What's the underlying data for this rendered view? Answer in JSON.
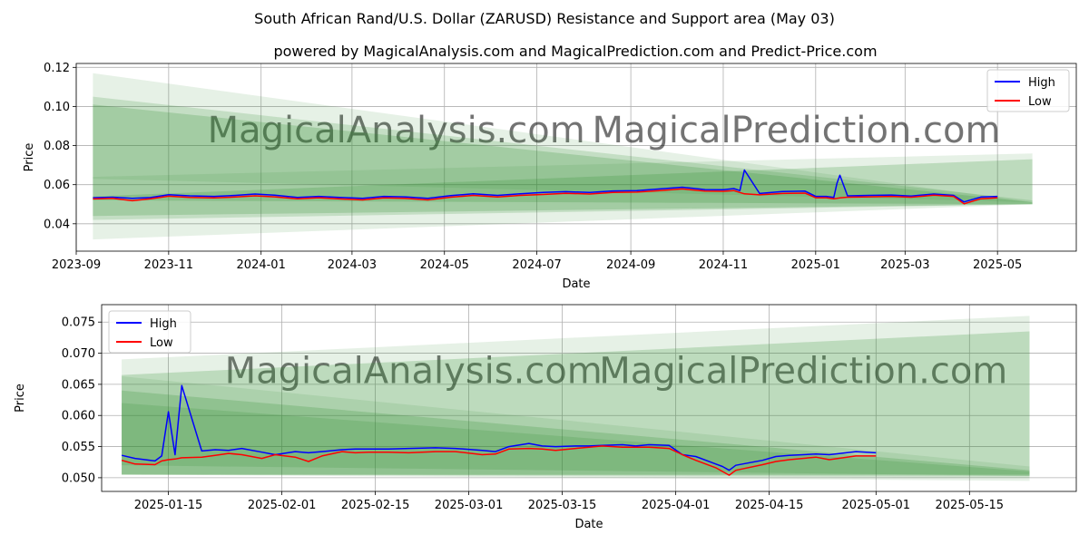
{
  "figure": {
    "title": "South African Rand/U.S. Dollar (ZARUSD) Resistance and Support area (May 03)",
    "subtitle": "powered by MagicalAnalysis.com and MagicalPrediction.com and Predict-Price.com",
    "watermark_left": "MagicalAnalysis.com",
    "watermark_right": "MagicalPrediction.com"
  },
  "colors": {
    "high": "#0000ff",
    "low": "#ff0000",
    "band": "#2e8b2e",
    "grid": "#b0b0b0"
  },
  "chart_data": [
    {
      "type": "line",
      "xlabel": "Date",
      "ylabel": "Price",
      "xlim": [
        "2023-09-01",
        "2025-06-22"
      ],
      "ylim": [
        0.026,
        0.122
      ],
      "xticks": [
        {
          "date": "2023-09-01",
          "label": "2023-09"
        },
        {
          "date": "2023-11-01",
          "label": "2023-11"
        },
        {
          "date": "2024-01-01",
          "label": "2024-01"
        },
        {
          "date": "2024-03-01",
          "label": "2024-03"
        },
        {
          "date": "2024-05-01",
          "label": "2024-05"
        },
        {
          "date": "2024-07-01",
          "label": "2024-07"
        },
        {
          "date": "2024-09-01",
          "label": "2024-09"
        },
        {
          "date": "2024-11-01",
          "label": "2024-11"
        },
        {
          "date": "2025-01-01",
          "label": "2025-01"
        },
        {
          "date": "2025-03-01",
          "label": "2025-03"
        },
        {
          "date": "2025-05-01",
          "label": "2025-05"
        }
      ],
      "yticks": [
        {
          "value": 0.04,
          "label": "0.04"
        },
        {
          "value": 0.06,
          "label": "0.06"
        },
        {
          "value": 0.08,
          "label": "0.08"
        },
        {
          "value": 0.1,
          "label": "0.10"
        },
        {
          "value": 0.12,
          "label": "0.12"
        }
      ],
      "grid": true,
      "legend": {
        "placement": "top-right",
        "entries": [
          "High",
          "Low"
        ]
      },
      "bands": [
        {
          "x0": "2023-09-12",
          "x1": "2025-05-24",
          "y0_top": 0.117,
          "y1_top": 0.051,
          "y0_bot": 0.032,
          "y1_bot": 0.05,
          "alpha": 0.12
        },
        {
          "x0": "2023-09-12",
          "x1": "2025-05-24",
          "y0_top": 0.105,
          "y1_top": 0.052,
          "y0_bot": 0.042,
          "y1_bot": 0.05,
          "alpha": 0.18
        },
        {
          "x0": "2023-09-12",
          "x1": "2025-05-24",
          "y0_top": 0.101,
          "y1_top": 0.051,
          "y0_bot": 0.052,
          "y1_bot": 0.05,
          "alpha": 0.22
        },
        {
          "x0": "2023-09-12",
          "x1": "2025-05-24",
          "y0_top": 0.064,
          "y1_top": 0.076,
          "y0_bot": 0.063,
          "y1_bot": 0.051,
          "alpha": 0.12
        },
        {
          "x0": "2023-09-12",
          "x1": "2025-05-24",
          "y0_top": 0.054,
          "y1_top": 0.073,
          "y0_bot": 0.044,
          "y1_bot": 0.05,
          "alpha": 0.22
        }
      ],
      "series": [
        {
          "name": "High",
          "x": [
            "2023-09-12",
            "2023-09-25",
            "2023-10-08",
            "2023-10-20",
            "2023-11-01",
            "2023-11-15",
            "2023-12-01",
            "2023-12-15",
            "2023-12-28",
            "2024-01-10",
            "2024-01-25",
            "2024-02-08",
            "2024-02-22",
            "2024-03-08",
            "2024-03-22",
            "2024-04-05",
            "2024-04-20",
            "2024-05-05",
            "2024-05-20",
            "2024-06-05",
            "2024-06-20",
            "2024-07-05",
            "2024-07-20",
            "2024-08-05",
            "2024-08-20",
            "2024-09-05",
            "2024-09-20",
            "2024-10-05",
            "2024-10-20",
            "2024-11-01",
            "2024-11-08",
            "2024-11-12",
            "2024-11-15",
            "2024-11-25",
            "2024-12-10",
            "2024-12-25",
            "2025-01-01",
            "2025-01-08",
            "2025-01-13",
            "2025-01-15",
            "2025-01-17",
            "2025-01-22",
            "2025-02-05",
            "2025-02-20",
            "2025-03-05",
            "2025-03-20",
            "2025-04-02",
            "2025-04-09",
            "2025-04-20",
            "2025-05-01"
          ],
          "values": [
            0.0533,
            0.0536,
            0.053,
            0.0534,
            0.0549,
            0.0543,
            0.054,
            0.0545,
            0.0552,
            0.0546,
            0.0535,
            0.054,
            0.0535,
            0.053,
            0.054,
            0.0538,
            0.053,
            0.0544,
            0.0553,
            0.0545,
            0.0553,
            0.056,
            0.0564,
            0.056,
            0.0568,
            0.057,
            0.0578,
            0.0587,
            0.0575,
            0.0574,
            0.058,
            0.057,
            0.0675,
            0.0555,
            0.0565,
            0.0567,
            0.054,
            0.054,
            0.0535,
            0.0606,
            0.0648,
            0.0543,
            0.0545,
            0.0547,
            0.0542,
            0.0552,
            0.0545,
            0.0512,
            0.0537,
            0.054
          ]
        },
        {
          "name": "Low",
          "x": [
            "2023-09-12",
            "2023-09-25",
            "2023-10-08",
            "2023-10-20",
            "2023-11-01",
            "2023-11-15",
            "2023-12-01",
            "2023-12-15",
            "2023-12-28",
            "2024-01-10",
            "2024-01-25",
            "2024-02-08",
            "2024-02-22",
            "2024-03-08",
            "2024-03-22",
            "2024-04-05",
            "2024-04-20",
            "2024-05-05",
            "2024-05-20",
            "2024-06-05",
            "2024-06-20",
            "2024-07-05",
            "2024-07-20",
            "2024-08-05",
            "2024-08-20",
            "2024-09-05",
            "2024-09-20",
            "2024-10-05",
            "2024-10-20",
            "2024-11-01",
            "2024-11-08",
            "2024-11-12",
            "2024-11-15",
            "2024-11-25",
            "2024-12-10",
            "2024-12-25",
            "2025-01-01",
            "2025-01-08",
            "2025-01-13",
            "2025-01-15",
            "2025-01-17",
            "2025-01-22",
            "2025-02-05",
            "2025-02-20",
            "2025-03-05",
            "2025-03-20",
            "2025-04-02",
            "2025-04-09",
            "2025-04-20",
            "2025-05-01"
          ],
          "values": [
            0.0527,
            0.053,
            0.0518,
            0.0528,
            0.0541,
            0.0535,
            0.0532,
            0.0537,
            0.0543,
            0.0538,
            0.0528,
            0.0533,
            0.0527,
            0.0522,
            0.0532,
            0.053,
            0.0522,
            0.0536,
            0.0545,
            0.0537,
            0.0545,
            0.055,
            0.0556,
            0.0552,
            0.056,
            0.0562,
            0.057,
            0.0578,
            0.0567,
            0.0566,
            0.057,
            0.056,
            0.0553,
            0.0548,
            0.0555,
            0.0557,
            0.0533,
            0.0533,
            0.0528,
            0.053,
            0.0532,
            0.0536,
            0.0538,
            0.054,
            0.0536,
            0.0546,
            0.054,
            0.0502,
            0.0528,
            0.0533
          ]
        }
      ]
    },
    {
      "type": "line",
      "xlabel": "Date",
      "ylabel": "Price",
      "xlim": [
        "2025-01-05",
        "2025-05-31"
      ],
      "ylim": [
        0.0478,
        0.0778
      ],
      "xticks": [
        {
          "date": "2025-01-15",
          "label": "2025-01-15"
        },
        {
          "date": "2025-02-01",
          "label": "2025-02-01"
        },
        {
          "date": "2025-02-15",
          "label": "2025-02-15"
        },
        {
          "date": "2025-03-01",
          "label": "2025-03-01"
        },
        {
          "date": "2025-03-15",
          "label": "2025-03-15"
        },
        {
          "date": "2025-04-01",
          "label": "2025-04-01"
        },
        {
          "date": "2025-04-15",
          "label": "2025-04-15"
        },
        {
          "date": "2025-05-01",
          "label": "2025-05-01"
        },
        {
          "date": "2025-05-15",
          "label": "2025-05-15"
        }
      ],
      "yticks": [
        {
          "value": 0.05,
          "label": "0.050"
        },
        {
          "value": 0.055,
          "label": "0.055"
        },
        {
          "value": 0.06,
          "label": "0.060"
        },
        {
          "value": 0.065,
          "label": "0.065"
        },
        {
          "value": 0.07,
          "label": "0.070"
        },
        {
          "value": 0.075,
          "label": "0.075"
        }
      ],
      "grid": true,
      "legend": {
        "placement": "top-left",
        "entries": [
          "High",
          "Low"
        ]
      },
      "bands": [
        {
          "x0": "2025-01-08",
          "x1": "2025-05-24",
          "y0_top": 0.069,
          "y1_top": 0.076,
          "y0_bot": 0.0505,
          "y1_bot": 0.0495,
          "alpha": 0.12
        },
        {
          "x0": "2025-01-08",
          "x1": "2025-05-24",
          "y0_top": 0.0665,
          "y1_top": 0.0735,
          "y0_bot": 0.0505,
          "y1_bot": 0.0505,
          "alpha": 0.22
        },
        {
          "x0": "2025-01-08",
          "x1": "2025-05-24",
          "y0_top": 0.0663,
          "y1_top": 0.0518,
          "y0_bot": 0.0505,
          "y1_bot": 0.05,
          "alpha": 0.12
        },
        {
          "x0": "2025-01-08",
          "x1": "2025-05-24",
          "y0_top": 0.064,
          "y1_top": 0.0512,
          "y0_bot": 0.0505,
          "y1_bot": 0.0503,
          "alpha": 0.22
        },
        {
          "x0": "2025-01-08",
          "x1": "2025-05-24",
          "y0_top": 0.062,
          "y1_top": 0.051,
          "y0_bot": 0.052,
          "y1_bot": 0.0503,
          "alpha": 0.18
        }
      ],
      "series": [
        {
          "name": "High",
          "x": [
            "2025-01-08",
            "2025-01-10",
            "2025-01-13",
            "2025-01-14",
            "2025-01-15",
            "2025-01-16",
            "2025-01-17",
            "2025-01-20",
            "2025-01-22",
            "2025-01-24",
            "2025-01-26",
            "2025-01-29",
            "2025-01-31",
            "2025-02-03",
            "2025-02-05",
            "2025-02-07",
            "2025-02-10",
            "2025-02-12",
            "2025-02-14",
            "2025-02-17",
            "2025-02-20",
            "2025-02-24",
            "2025-02-27",
            "2025-03-03",
            "2025-03-05",
            "2025-03-07",
            "2025-03-10",
            "2025-03-12",
            "2025-03-14",
            "2025-03-17",
            "2025-03-19",
            "2025-03-21",
            "2025-03-24",
            "2025-03-26",
            "2025-03-28",
            "2025-03-31",
            "2025-04-02",
            "2025-04-04",
            "2025-04-07",
            "2025-04-08",
            "2025-04-09",
            "2025-04-10",
            "2025-04-14",
            "2025-04-16",
            "2025-04-18",
            "2025-04-22",
            "2025-04-24",
            "2025-04-28",
            "2025-05-01"
          ],
          "values": [
            0.0536,
            0.0531,
            0.0527,
            0.0535,
            0.0606,
            0.0537,
            0.0648,
            0.0543,
            0.0545,
            0.0544,
            0.0547,
            0.0541,
            0.0537,
            0.0542,
            0.054,
            0.0542,
            0.0545,
            0.0546,
            0.0546,
            0.0546,
            0.0547,
            0.0548,
            0.0547,
            0.0544,
            0.0542,
            0.055,
            0.0555,
            0.0551,
            0.055,
            0.0551,
            0.0551,
            0.0552,
            0.0553,
            0.0551,
            0.0553,
            0.0552,
            0.0537,
            0.0534,
            0.0522,
            0.0518,
            0.0512,
            0.052,
            0.0528,
            0.0534,
            0.0536,
            0.0538,
            0.0537,
            0.0542,
            0.054
          ]
        },
        {
          "name": "Low",
          "x": [
            "2025-01-08",
            "2025-01-10",
            "2025-01-13",
            "2025-01-14",
            "2025-01-15",
            "2025-01-16",
            "2025-01-17",
            "2025-01-20",
            "2025-01-22",
            "2025-01-24",
            "2025-01-26",
            "2025-01-29",
            "2025-01-31",
            "2025-02-03",
            "2025-02-05",
            "2025-02-07",
            "2025-02-10",
            "2025-02-12",
            "2025-02-14",
            "2025-02-17",
            "2025-02-20",
            "2025-02-24",
            "2025-02-27",
            "2025-03-03",
            "2025-03-05",
            "2025-03-07",
            "2025-03-10",
            "2025-03-12",
            "2025-03-14",
            "2025-03-17",
            "2025-03-19",
            "2025-03-21",
            "2025-03-24",
            "2025-03-26",
            "2025-03-28",
            "2025-03-31",
            "2025-04-02",
            "2025-04-04",
            "2025-04-07",
            "2025-04-08",
            "2025-04-09",
            "2025-04-10",
            "2025-04-14",
            "2025-04-16",
            "2025-04-18",
            "2025-04-22",
            "2025-04-24",
            "2025-04-28",
            "2025-05-01"
          ],
          "values": [
            0.0528,
            0.0522,
            0.0521,
            0.0527,
            0.0529,
            0.053,
            0.0532,
            0.0533,
            0.0536,
            0.0539,
            0.0537,
            0.0531,
            0.0537,
            0.0533,
            0.0526,
            0.0535,
            0.0542,
            0.054,
            0.0541,
            0.0541,
            0.054,
            0.0542,
            0.0542,
            0.0537,
            0.0538,
            0.0546,
            0.0547,
            0.0546,
            0.0544,
            0.0547,
            0.0549,
            0.0551,
            0.0549,
            0.0549,
            0.0549,
            0.0547,
            0.0537,
            0.0528,
            0.0516,
            0.051,
            0.0504,
            0.0512,
            0.0521,
            0.0526,
            0.0529,
            0.0533,
            0.0529,
            0.0535,
            0.0535
          ]
        }
      ]
    }
  ]
}
